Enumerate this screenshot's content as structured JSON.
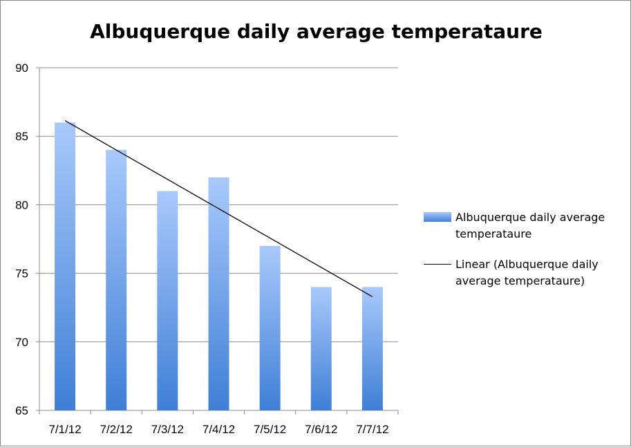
{
  "chart_data": {
    "type": "bar",
    "title": "Albuquerque daily average temperataure",
    "categories": [
      "7/1/12",
      "7/2/12",
      "7/3/12",
      "7/4/12",
      "7/5/12",
      "7/6/12",
      "7/7/12"
    ],
    "series": [
      {
        "name": "Albuquerque daily average temperataure",
        "values": [
          86,
          84,
          81,
          82,
          77,
          74,
          74
        ],
        "color_top": "#a9c9fb",
        "color_bottom": "#3f7fd6"
      }
    ],
    "trendline": {
      "name": "Linear (Albuquerque daily average temperataure)",
      "type": "linear",
      "start": 86.14,
      "end": 73.29,
      "color": "#000000"
    },
    "ylim": [
      65,
      90
    ],
    "yticks": [
      "65",
      "70",
      "75",
      "80",
      "85",
      "90"
    ],
    "grid": true,
    "legend_position": "right"
  }
}
